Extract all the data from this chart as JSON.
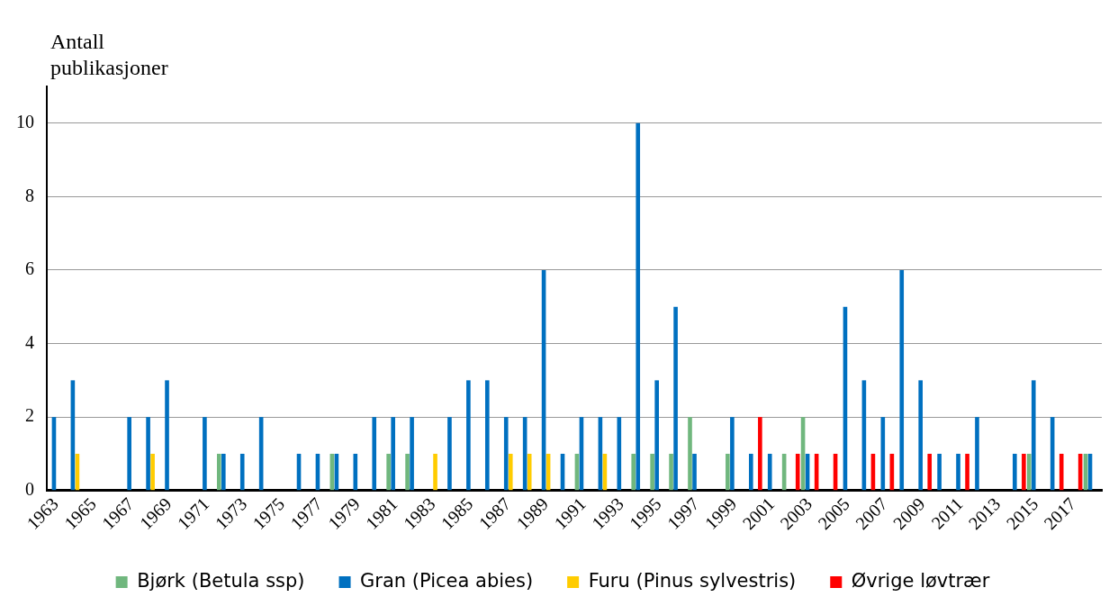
{
  "chart_data": {
    "type": "bar",
    "ylabel": "Antall publikasjoner",
    "categories": [
      "1963",
      null,
      "1965",
      null,
      "1967",
      null,
      "1969",
      null,
      "1971",
      null,
      "1973",
      null,
      "1975",
      null,
      "1977",
      null,
      "1979",
      null,
      "1981",
      null,
      "1983",
      null,
      "1985",
      null,
      "1987",
      null,
      "1989",
      null,
      "1991",
      null,
      "1993",
      null,
      "1995",
      null,
      "1997",
      null,
      "1999",
      null,
      "2001",
      null,
      "2003",
      null,
      "2005",
      null,
      "2007",
      null,
      "2009",
      null,
      "2011",
      null,
      "2013",
      null,
      "2015",
      null,
      "2017",
      null
    ],
    "series": [
      {
        "name": "Bjørk (Betula ssp)",
        "color": "#70b77e",
        "values": [
          0,
          0,
          0,
          0,
          0,
          0,
          0,
          0,
          0,
          1,
          0,
          0,
          0,
          0,
          0,
          1,
          0,
          0,
          1,
          1,
          0,
          0,
          0,
          0,
          0,
          0,
          0,
          0,
          1,
          0,
          0,
          1,
          1,
          1,
          2,
          0,
          1,
          0,
          0,
          1,
          2,
          0,
          0,
          0,
          0,
          0,
          0,
          0,
          0,
          0,
          0,
          0,
          1,
          0,
          0,
          1
        ]
      },
      {
        "name": "Gran (Picea abies)",
        "color": "#0070c0",
        "values": [
          2,
          3,
          0,
          0,
          2,
          2,
          3,
          0,
          2,
          1,
          1,
          2,
          0,
          1,
          1,
          1,
          1,
          2,
          2,
          2,
          0,
          2,
          3,
          3,
          2,
          2,
          6,
          1,
          2,
          2,
          2,
          10,
          3,
          5,
          1,
          0,
          2,
          1,
          1,
          0,
          1,
          0,
          5,
          3,
          2,
          6,
          3,
          1,
          1,
          2,
          0,
          1,
          3,
          2,
          0,
          1
        ]
      },
      {
        "name": "Furu (Pinus sylvestris)",
        "color": "#ffcc00",
        "values": [
          0,
          1,
          0,
          0,
          0,
          1,
          0,
          0,
          0,
          0,
          0,
          0,
          0,
          0,
          0,
          0,
          0,
          0,
          0,
          0,
          1,
          0,
          0,
          0,
          1,
          1,
          1,
          0,
          0,
          1,
          0,
          0,
          0,
          0,
          0,
          0,
          0,
          0,
          0,
          0,
          0,
          0,
          0,
          0,
          0,
          0,
          0,
          0,
          0,
          0,
          0,
          0,
          0,
          0,
          0,
          0
        ]
      },
      {
        "name": "Øvrige løvtrær",
        "color": "#ff0000",
        "values": [
          0,
          0,
          0,
          0,
          0,
          0,
          0,
          0,
          0,
          0,
          0,
          0,
          0,
          0,
          0,
          0,
          0,
          0,
          0,
          0,
          0,
          0,
          0,
          0,
          0,
          0,
          0,
          0,
          0,
          0,
          0,
          0,
          0,
          0,
          0,
          0,
          0,
          2,
          0,
          1,
          1,
          1,
          0,
          1,
          1,
          0,
          1,
          0,
          1,
          0,
          0,
          1,
          0,
          1,
          1,
          0
        ]
      }
    ],
    "ylim": [
      0,
      11
    ],
    "yticks": [
      0,
      2,
      4,
      6,
      8,
      10
    ],
    "grid": "y",
    "legend": "bottom"
  }
}
